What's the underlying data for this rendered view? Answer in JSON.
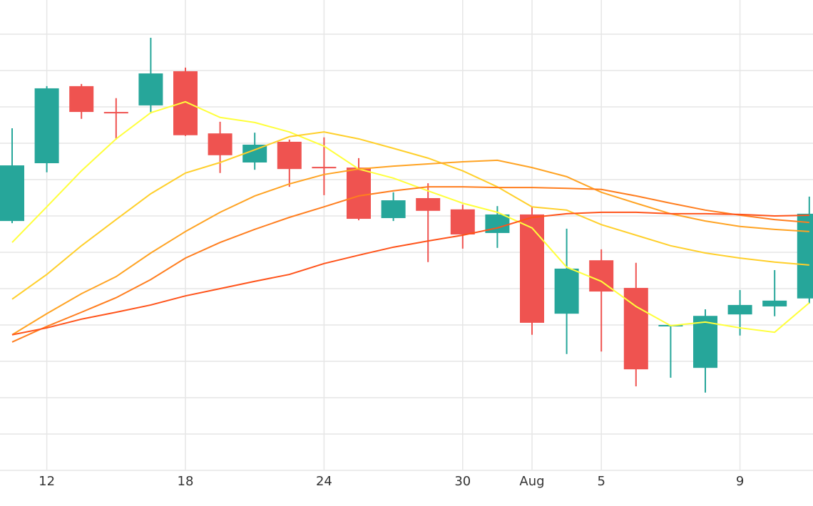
{
  "chart_data": {
    "type": "candlestick",
    "categories": [
      null,
      "12",
      null,
      null,
      null,
      "18",
      null,
      null,
      null,
      "24",
      null,
      null,
      null,
      "30",
      null,
      "Aug",
      null,
      "5",
      null,
      null,
      null,
      "9",
      null,
      null
    ],
    "open": [
      6.86,
      8.45,
      10.57,
      9.86,
      10.04,
      10.98,
      9.27,
      8.47,
      9.04,
      8.35,
      8.33,
      6.94,
      7.49,
      7.18,
      6.53,
      7.04,
      4.31,
      5.78,
      5.02,
      3.96,
      2.82,
      4.29,
      4.51,
      4.73
    ],
    "high": [
      9.41,
      10.57,
      10.63,
      10.24,
      11.9,
      11.08,
      9.59,
      9.29,
      9.1,
      9.16,
      8.59,
      7.65,
      7.9,
      7.31,
      7.27,
      7.25,
      6.65,
      6.08,
      5.71,
      4.0,
      4.43,
      4.96,
      5.51,
      7.53
    ],
    "low": [
      6.8,
      8.2,
      9.67,
      9.1,
      9.82,
      9.2,
      8.18,
      8.27,
      7.8,
      7.57,
      6.88,
      6.86,
      5.73,
      6.1,
      6.12,
      3.73,
      3.2,
      3.27,
      2.31,
      2.55,
      2.14,
      3.71,
      4.24,
      4.59
    ],
    "close": [
      8.39,
      10.51,
      9.86,
      9.84,
      10.92,
      9.22,
      8.67,
      8.96,
      8.29,
      8.31,
      6.92,
      7.43,
      7.14,
      6.49,
      7.04,
      4.06,
      5.55,
      4.92,
      2.78,
      4.0,
      4.25,
      4.55,
      4.67,
      7.06
    ],
    "up_color": "#26a69a",
    "down_color": "#ef5350",
    "lines": [
      {
        "color": "#ffff3b",
        "values": [
          6.27,
          7.25,
          8.24,
          9.12,
          9.84,
          10.14,
          9.71,
          9.57,
          9.31,
          8.92,
          8.29,
          8.04,
          7.69,
          7.35,
          7.1,
          6.67,
          5.59,
          5.2,
          4.51,
          3.98,
          4.08,
          3.92,
          3.8,
          4.61
        ]
      },
      {
        "color": "#ffcf2a",
        "values": [
          4.71,
          5.39,
          6.18,
          6.9,
          7.61,
          8.18,
          8.47,
          8.82,
          9.18,
          9.31,
          9.12,
          8.86,
          8.59,
          8.24,
          7.8,
          7.25,
          7.16,
          6.76,
          6.47,
          6.18,
          5.98,
          5.84,
          5.73,
          5.65
        ]
      },
      {
        "color": "#ffa323",
        "values": [
          3.73,
          4.31,
          4.86,
          5.33,
          5.98,
          6.57,
          7.1,
          7.55,
          7.88,
          8.14,
          8.29,
          8.37,
          8.43,
          8.49,
          8.53,
          8.33,
          8.08,
          7.65,
          7.35,
          7.06,
          6.86,
          6.71,
          6.63,
          6.57
        ]
      },
      {
        "color": "#ff7e1f",
        "values": [
          3.53,
          3.96,
          4.35,
          4.75,
          5.25,
          5.84,
          6.27,
          6.63,
          6.96,
          7.25,
          7.55,
          7.69,
          7.8,
          7.8,
          7.78,
          7.78,
          7.76,
          7.73,
          7.55,
          7.35,
          7.16,
          7.02,
          6.9,
          6.82
        ]
      },
      {
        "color": "#ff531a",
        "values": [
          3.73,
          3.92,
          4.16,
          4.35,
          4.55,
          4.8,
          5.0,
          5.2,
          5.39,
          5.69,
          5.92,
          6.14,
          6.31,
          6.47,
          6.67,
          6.96,
          7.06,
          7.1,
          7.1,
          7.06,
          7.06,
          7.04,
          7.0,
          7.02
        ]
      }
    ],
    "ylim": [
      0,
      12.94
    ],
    "yticks": [
      0,
      1,
      2,
      3,
      4,
      5,
      6,
      7,
      8,
      9,
      10,
      11,
      12
    ],
    "grid": true
  }
}
